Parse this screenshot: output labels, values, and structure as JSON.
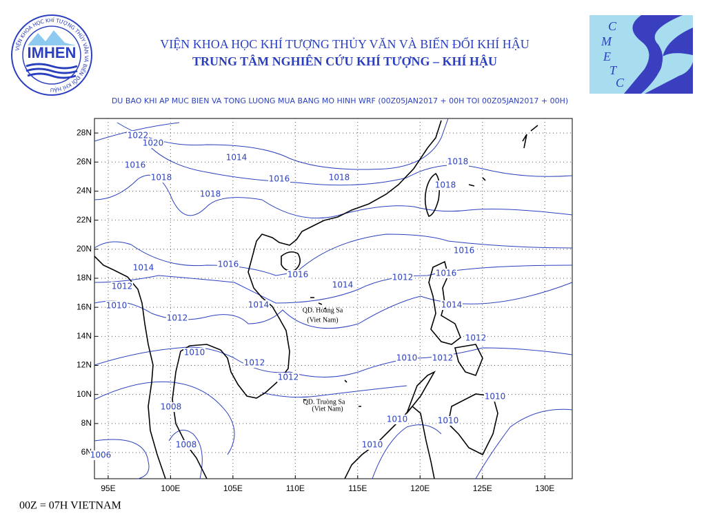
{
  "header": {
    "institute": "VIỆN KHOA HỌC KHÍ TƯỢNG THỦY VĂN VÀ BIẾN ĐỔI KHÍ HẬU",
    "center": "TRUNG TÂM NGHIÊN CỨU KHÍ TƯỢNG – KHÍ HẬU",
    "logo_left": "IMHEN",
    "logo_left_ring": "VIỆN KHOA HỌC KHÍ TƯỢNG THỦY VĂN VÀ BIẾN ĐỔI KHÍ HẬU",
    "logo_right_letters": [
      "C",
      "M",
      "E",
      "T",
      "C"
    ]
  },
  "map": {
    "title": "DU BAO KHI AP MUC BIEN VA TONG LUONG MUA BANG MO HINH WRF (00Z05JAN2017 + 00H TOI 00Z05JAN2017 + 00H)",
    "lon_range": [
      93.9,
      132.2
    ],
    "lat_range": [
      4.2,
      29.0
    ],
    "lat_ticks": [
      {
        "value": 28,
        "label": "28N"
      },
      {
        "value": 26,
        "label": "26N"
      },
      {
        "value": 24,
        "label": "24N"
      },
      {
        "value": 22,
        "label": "22N"
      },
      {
        "value": 20,
        "label": "20N"
      },
      {
        "value": 18,
        "label": "18N"
      },
      {
        "value": 16,
        "label": "16N"
      },
      {
        "value": 14,
        "label": "14N"
      },
      {
        "value": 12,
        "label": "12N"
      },
      {
        "value": 10,
        "label": "10N"
      },
      {
        "value": 8,
        "label": "8N"
      },
      {
        "value": 6,
        "label": "6N"
      }
    ],
    "lon_ticks": [
      {
        "value": 95,
        "label": "95E"
      },
      {
        "value": 100,
        "label": "100E"
      },
      {
        "value": 105,
        "label": "105E"
      },
      {
        "value": 110,
        "label": "110E"
      },
      {
        "value": 115,
        "label": "115E"
      },
      {
        "value": 120,
        "label": "120E"
      },
      {
        "value": 125,
        "label": "125E"
      },
      {
        "value": 130,
        "label": "130E"
      }
    ],
    "isobar_labels": [
      1022,
      1020,
      1016,
      1014,
      1016,
      1018,
      1018,
      1018,
      1018,
      1018,
      1016,
      1016,
      1014,
      1012,
      1016,
      1014,
      1016,
      1012,
      1014,
      1014,
      1010,
      1012,
      1012,
      1010,
      1012,
      1010,
      1012,
      1012,
      1010,
      1008,
      1010,
      1010,
      1008,
      1010,
      1006
    ],
    "islands": [
      "QD. Hoàng Sa",
      "(Viet Nam)",
      "QD. Truòng Sa",
      "(Viet Nam)"
    ]
  },
  "footer": "00Z = 07H VIETNAM"
}
